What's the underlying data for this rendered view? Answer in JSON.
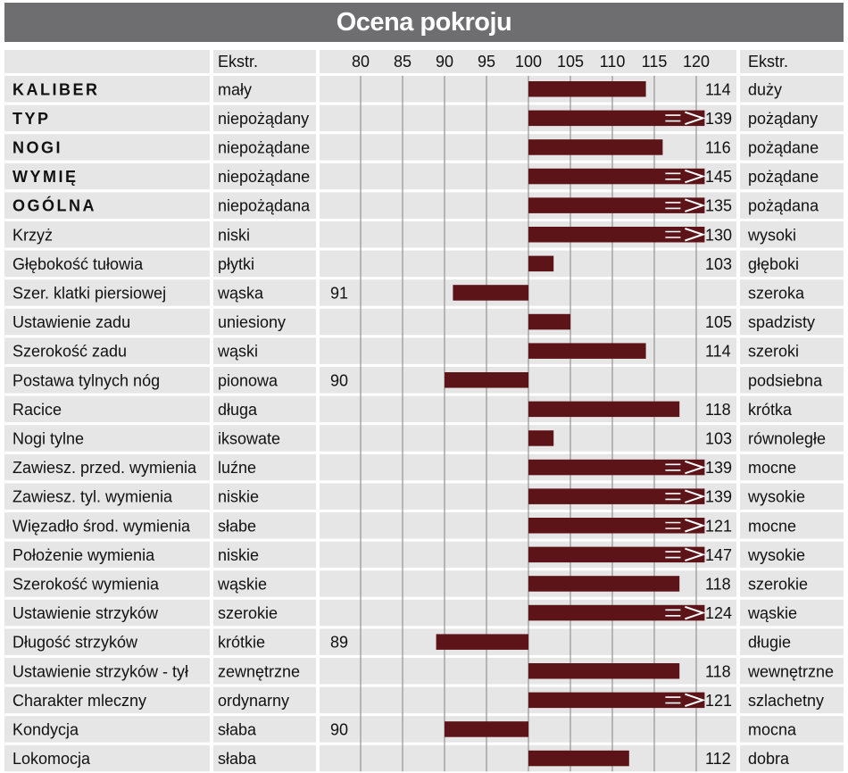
{
  "title": "Ocena pokroju",
  "header": {
    "ekstr_left": "Ekstr.",
    "ekstr_right": "Ekstr."
  },
  "colors": {
    "bar": "#5c1419",
    "title_bg": "#6e6e70",
    "cell_bg": "#e6e6e6",
    "grid": "#9a9a9a"
  },
  "chart_data": {
    "type": "bar",
    "orientation": "horizontal",
    "baseline": 100,
    "xlim": [
      80,
      120
    ],
    "ticks": [
      80,
      85,
      90,
      95,
      100,
      105,
      110,
      115,
      120
    ],
    "rows": [
      {
        "label": "KALIBER",
        "bold": true,
        "left": "mały",
        "value": 114,
        "right": "duży",
        "overflow": false
      },
      {
        "label": "TYP",
        "bold": true,
        "left": "niepożądany",
        "value": 139,
        "right": "pożądany",
        "overflow": true
      },
      {
        "label": "NOGI",
        "bold": true,
        "left": "niepożądane",
        "value": 116,
        "right": "pożądane",
        "overflow": false
      },
      {
        "label": "WYMIĘ",
        "bold": true,
        "left": "niepożądane",
        "value": 145,
        "right": "pożądane",
        "overflow": true
      },
      {
        "label": "OGÓLNA",
        "bold": true,
        "left": "niepożądana",
        "value": 135,
        "right": "pożądana",
        "overflow": true
      },
      {
        "label": "Krzyż",
        "bold": false,
        "left": "niski",
        "value": 130,
        "right": "wysoki",
        "overflow": true
      },
      {
        "label": "Głębokość tułowia",
        "bold": false,
        "left": "płytki",
        "value": 103,
        "right": "głęboki",
        "overflow": false
      },
      {
        "label": "Szer. klatki piersiowej",
        "bold": false,
        "left": "wąska",
        "value": 91,
        "right": "szeroka",
        "overflow": false
      },
      {
        "label": "Ustawienie zadu",
        "bold": false,
        "left": "uniesiony",
        "value": 105,
        "right": "spadzisty",
        "overflow": false
      },
      {
        "label": "Szerokość zadu",
        "bold": false,
        "left": "wąski",
        "value": 114,
        "right": "szeroki",
        "overflow": false
      },
      {
        "label": "Postawa tylnych nóg",
        "bold": false,
        "left": "pionowa",
        "value": 90,
        "right": "podsiebna",
        "overflow": false
      },
      {
        "label": "Racice",
        "bold": false,
        "left": "długa",
        "value": 118,
        "right": "krótka",
        "overflow": false
      },
      {
        "label": "Nogi tylne",
        "bold": false,
        "left": "iksowate",
        "value": 103,
        "right": "równoległe",
        "overflow": false
      },
      {
        "label": "Zawiesz. przed. wymienia",
        "bold": false,
        "left": "luźne",
        "value": 139,
        "right": "mocne",
        "overflow": true
      },
      {
        "label": "Zawiesz. tyl. wymienia",
        "bold": false,
        "left": "niskie",
        "value": 139,
        "right": "wysokie",
        "overflow": true
      },
      {
        "label": "Więzadło środ. wymienia",
        "bold": false,
        "left": "słabe",
        "value": 121,
        "right": "mocne",
        "overflow": true
      },
      {
        "label": "Położenie wymienia",
        "bold": false,
        "left": "niskie",
        "value": 147,
        "right": "wysokie",
        "overflow": true
      },
      {
        "label": "Szerokość wymienia",
        "bold": false,
        "left": "wąskie",
        "value": 118,
        "right": "szerokie",
        "overflow": false
      },
      {
        "label": "Ustawienie strzyków",
        "bold": false,
        "left": "szerokie",
        "value": 124,
        "right": "wąskie",
        "overflow": true
      },
      {
        "label": "Długość strzyków",
        "bold": false,
        "left": "krótkie",
        "value": 89,
        "right": "długie",
        "overflow": false
      },
      {
        "label": "Ustawienie strzyków - tył",
        "bold": false,
        "left": "zewnętrzne",
        "value": 118,
        "right": "wewnętrzne",
        "overflow": false
      },
      {
        "label": "Charakter mleczny",
        "bold": false,
        "left": "ordynarny",
        "value": 121,
        "right": "szlachetny",
        "overflow": true
      },
      {
        "label": "Kondycja",
        "bold": false,
        "left": "słaba",
        "value": 90,
        "right": "mocna",
        "overflow": false
      },
      {
        "label": "Lokomocja",
        "bold": false,
        "left": "słaba",
        "value": 112,
        "right": "dobra",
        "overflow": false
      }
    ]
  }
}
